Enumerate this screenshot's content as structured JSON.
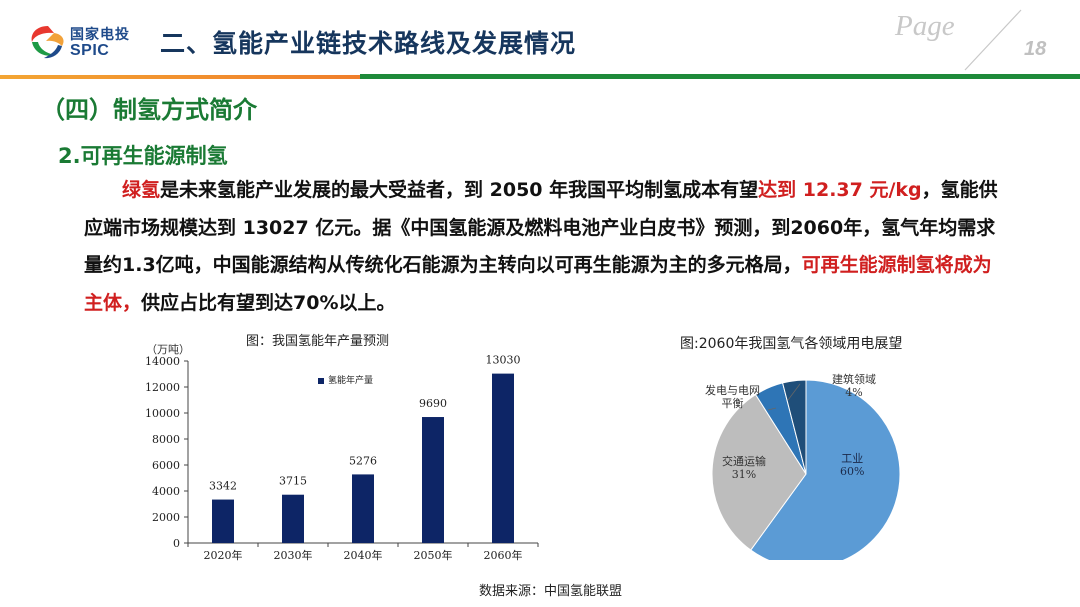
{
  "header": {
    "logo_cn": "国家电投",
    "logo_en": "SPIC",
    "title": "二、氢能产业链技术路线及发展情况",
    "page_word": "Page",
    "page_number": "18"
  },
  "section_title": "（四）制氢方式简介",
  "sub_title": "2.可再生能源制氢",
  "paragraph": {
    "p1": "绿氢",
    "p2": "是未来氢能产业发展的最大受益者，到 2050 年我国平均制氢成本有望",
    "p3": "达到 12.37 元/kg",
    "p4": "，氢能供应端市场规模达到 13027 亿元。据《中国氢能源及燃料电池产业白皮书》预测，到2060年，氢气年均需求量约1.3亿吨，中国能源结构从传统化石能源为主转向以可再生能源为主的多元格局，",
    "p5": "可再生能源制氢将成为主体，",
    "p6": "供应占比有望到达70%以上。"
  },
  "colors": {
    "brand_green": "#1a7a34",
    "header_navy": "#16365d",
    "highlight_red": "#d01f1f",
    "bar_navy": "#0d2566",
    "pie_industry": "#5b9bd5",
    "pie_transport": "#bdbdbd",
    "pie_power": "#2e75b6",
    "pie_building": "#1f4e79"
  },
  "chart_data": [
    {
      "type": "bar",
      "title": "图：我国氢能年产量预测",
      "ylabel": "（万吨）",
      "legend": "氢能年产量",
      "categories": [
        "2020年",
        "2030年",
        "2040年",
        "2050年",
        "2060年"
      ],
      "series": [
        {
          "name": "氢能年产量",
          "values": [
            3342,
            3715,
            5276,
            9690,
            13030
          ]
        }
      ],
      "ylim": [
        0,
        14000
      ],
      "yticks": [
        0,
        2000,
        4000,
        6000,
        8000,
        10000,
        12000,
        14000
      ],
      "data_labels": [
        "3342",
        "3715",
        "5276",
        "9690",
        "13030"
      ],
      "grid": false
    },
    {
      "type": "pie",
      "title": "图:2060年我国氢气各领域用电展望",
      "slices": [
        {
          "name": "工业",
          "label": "60%",
          "value": 60
        },
        {
          "name": "交通运输",
          "label": "31%",
          "value": 31
        },
        {
          "name": "发电与电网平衡",
          "label": "5%",
          "value": 5
        },
        {
          "name": "建筑领域",
          "label": "4%",
          "value": 4
        }
      ],
      "slice_labels": {
        "industry_name": "工业",
        "industry_pct": "60%",
        "transport_name": "交通运输",
        "transport_pct": "31%",
        "power_name_line1": "发电与电网",
        "power_name_line2": "平衡",
        "building_name": "建筑领域",
        "building_pct": "4%"
      }
    }
  ],
  "source": "数据来源：中国氢能联盟"
}
